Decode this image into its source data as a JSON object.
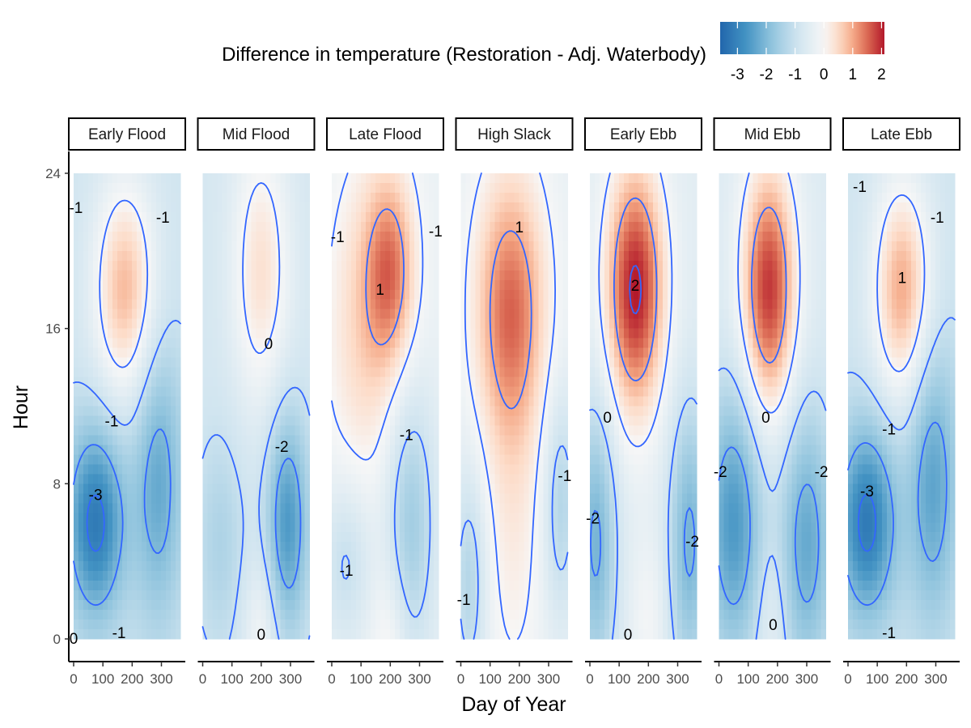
{
  "chart_data": {
    "type": "heatmap",
    "title": "",
    "xlabel": "Day of Year",
    "ylabel": "Hour",
    "xlim": [
      0,
      365
    ],
    "ylim": [
      0,
      24
    ],
    "x_ticks": [
      0,
      100,
      200,
      300
    ],
    "x_tick_labels": [
      "0",
      "100",
      "200",
      "300"
    ],
    "y_ticks": [
      0,
      8,
      16,
      24
    ],
    "y_tick_labels": [
      "0",
      "8",
      "16",
      "24"
    ],
    "legend": {
      "title": "Difference in temperature (Restoration - Adj. Waterbody)",
      "placement": "top",
      "range": [
        -3.6,
        2.1
      ],
      "ticks": [
        -3,
        -2,
        -1,
        0,
        1,
        2
      ],
      "tick_labels": [
        "-3",
        "-2",
        "-1",
        "0",
        "1",
        "2"
      ],
      "colors": [
        "#2166ac",
        "#4393c3",
        "#92c5de",
        "#d1e5f0",
        "#f7f7f7",
        "#fddbc7",
        "#f4a582",
        "#d6604d",
        "#b2182b"
      ]
    },
    "contour_levels": [
      -3,
      -2,
      -1,
      0,
      1,
      2
    ],
    "contour_color": "#3366ff",
    "panels": [
      {
        "name": "Early Flood",
        "labels": [
          {
            "text": "-1",
            "x": 8,
            "y": 22.2
          },
          {
            "text": "-1",
            "x": 305,
            "y": 21.7
          },
          {
            "text": "0",
            "x": 0,
            "y": 0
          },
          {
            "text": "-1",
            "x": 130,
            "y": 11.2
          },
          {
            "text": "-3",
            "x": 75,
            "y": 7.4
          },
          {
            "text": "-1",
            "x": 155,
            "y": 0.3
          }
        ]
      },
      {
        "name": "Mid Flood",
        "labels": [
          {
            "text": "0",
            "x": 225,
            "y": 15.2
          },
          {
            "text": "-2",
            "x": 270,
            "y": 9.9
          },
          {
            "text": "0",
            "x": 200,
            "y": 0.2
          }
        ]
      },
      {
        "name": "Late Flood",
        "labels": [
          {
            "text": "-1",
            "x": 20,
            "y": 20.7
          },
          {
            "text": "-1",
            "x": 355,
            "y": 21.0
          },
          {
            "text": "1",
            "x": 165,
            "y": 18.0
          },
          {
            "text": "-1",
            "x": 255,
            "y": 10.5
          },
          {
            "text": "-1",
            "x": 50,
            "y": 3.5
          }
        ]
      },
      {
        "name": "High Slack",
        "labels": [
          {
            "text": "1",
            "x": 200,
            "y": 21.2
          },
          {
            "text": "-1",
            "x": 355,
            "y": 8.4
          },
          {
            "text": "-1",
            "x": 10,
            "y": 2.0
          }
        ]
      },
      {
        "name": "Early Ebb",
        "labels": [
          {
            "text": "2",
            "x": 155,
            "y": 18.2
          },
          {
            "text": "0",
            "x": 60,
            "y": 11.4
          },
          {
            "text": "-2",
            "x": 10,
            "y": 6.2
          },
          {
            "text": "-2",
            "x": 350,
            "y": 5.0
          },
          {
            "text": "0",
            "x": 130,
            "y": 0.2
          }
        ]
      },
      {
        "name": "Mid Ebb",
        "labels": [
          {
            "text": "0",
            "x": 160,
            "y": 11.4
          },
          {
            "text": "-2",
            "x": 5,
            "y": 8.6
          },
          {
            "text": "-2",
            "x": 350,
            "y": 8.6
          },
          {
            "text": "0",
            "x": 185,
            "y": 0.7
          }
        ]
      },
      {
        "name": "Late Ebb",
        "labels": [
          {
            "text": "-1",
            "x": 40,
            "y": 23.3
          },
          {
            "text": "-1",
            "x": 305,
            "y": 21.7
          },
          {
            "text": "1",
            "x": 185,
            "y": 18.6
          },
          {
            "text": "-1",
            "x": 140,
            "y": 10.8
          },
          {
            "text": "-3",
            "x": 65,
            "y": 7.6
          },
          {
            "text": "-1",
            "x": 140,
            "y": 0.3
          }
        ]
      }
    ]
  }
}
